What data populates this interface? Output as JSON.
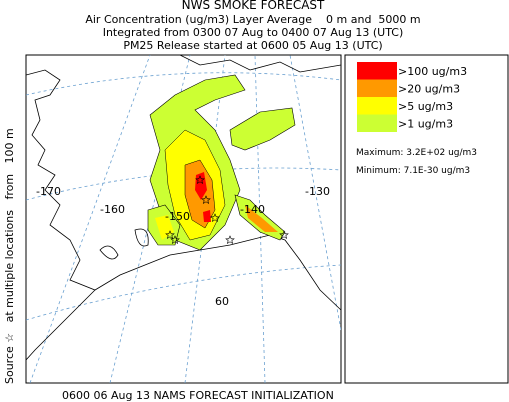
{
  "header": {
    "title": "NWS SMOKE FORECAST",
    "lines": [
      "Air Concentration (ug/m3) Layer Average    0 m and  5000 m",
      "Integrated from 0300 07 Aug to 0400 07 Aug 13 (UTC)",
      "PM25 Release started at 0600 05 Aug 13 (UTC)"
    ]
  },
  "side_label": "Source ☆   at multiple locations   from   100 m",
  "map": {
    "labels": [
      "-170",
      "-160",
      "-150",
      "-140",
      "-130",
      "60"
    ]
  },
  "legend": {
    "items": [
      {
        "label": ">100 ug/m3",
        "color": "#ff0000"
      },
      {
        "label": ">20 ug/m3",
        "color": "#ff9900"
      },
      {
        "label": ">5 ug/m3",
        "color": "#ffff00"
      },
      {
        "label": ">1 ug/m3",
        "color": "#ccff33"
      }
    ],
    "maximum": "Maximum: 3.2E+02 ug/m3",
    "minimum": "Minimum: 7.1E-30 ug/m3"
  },
  "footer": "0600 06 Aug 13 NAMS FORECAST INITIALIZATION"
}
